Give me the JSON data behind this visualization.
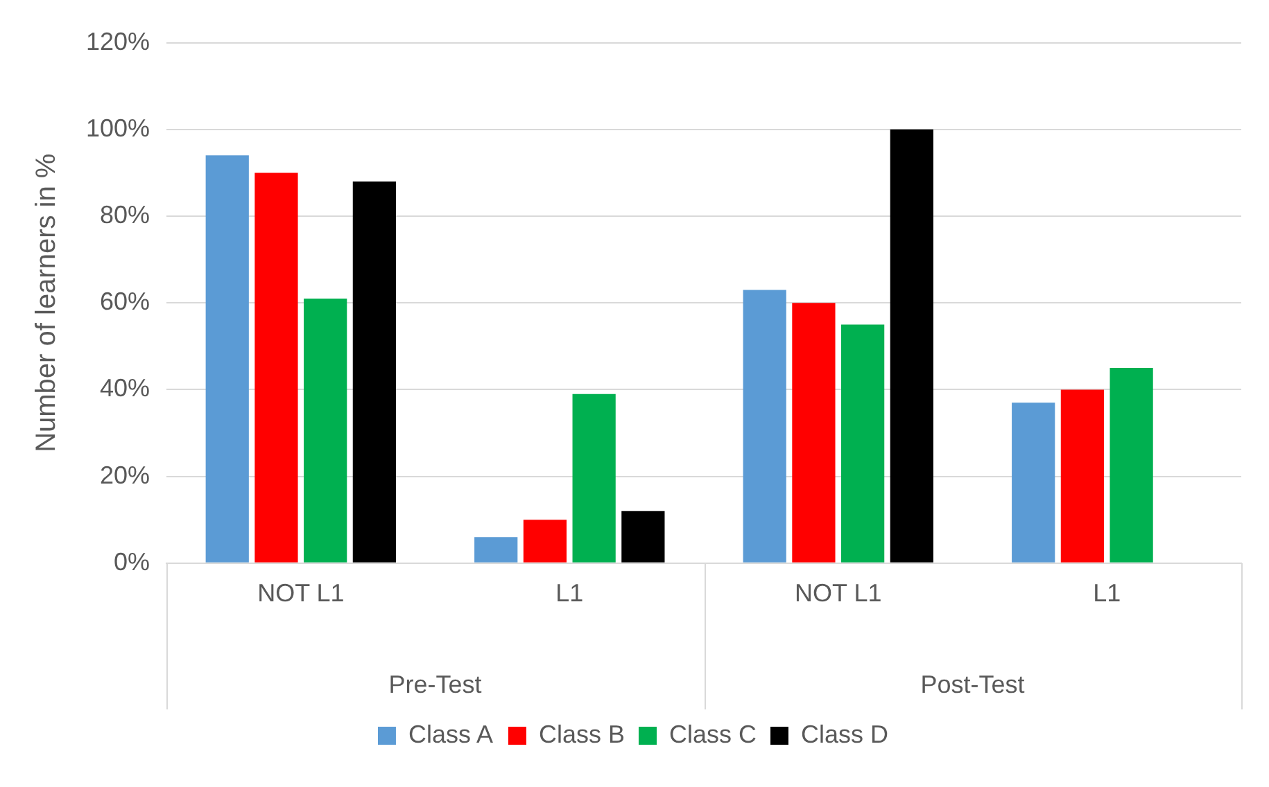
{
  "chart_data": {
    "type": "bar",
    "ylabel": "Number of learners in %",
    "categories": [
      "NOT L1",
      "L1",
      "NOT L1",
      "L1"
    ],
    "annotations": [
      "Pre-Test",
      "Post-Test"
    ],
    "series": [
      {
        "name": "Class A",
        "color": "#5b9bd5",
        "values": [
          94,
          6,
          63,
          37
        ]
      },
      {
        "name": "Class B",
        "color": "#ff0000",
        "values": [
          90,
          10,
          60,
          40
        ]
      },
      {
        "name": "Class C",
        "color": "#00b050",
        "values": [
          61,
          39,
          55,
          45
        ]
      },
      {
        "name": "Class D",
        "color": "#000000",
        "values": [
          88,
          12,
          100,
          null
        ]
      }
    ],
    "ylim": [
      0,
      120
    ],
    "yticks": [
      {
        "value": 0,
        "label": "0%"
      },
      {
        "value": 20,
        "label": "20%"
      },
      {
        "value": 40,
        "label": "40%"
      },
      {
        "value": 60,
        "label": "60%"
      },
      {
        "value": 80,
        "label": "80%"
      },
      {
        "value": 100,
        "label": "100%"
      },
      {
        "value": 120,
        "label": "120%"
      }
    ],
    "grid": "y",
    "legend": "bottom"
  }
}
